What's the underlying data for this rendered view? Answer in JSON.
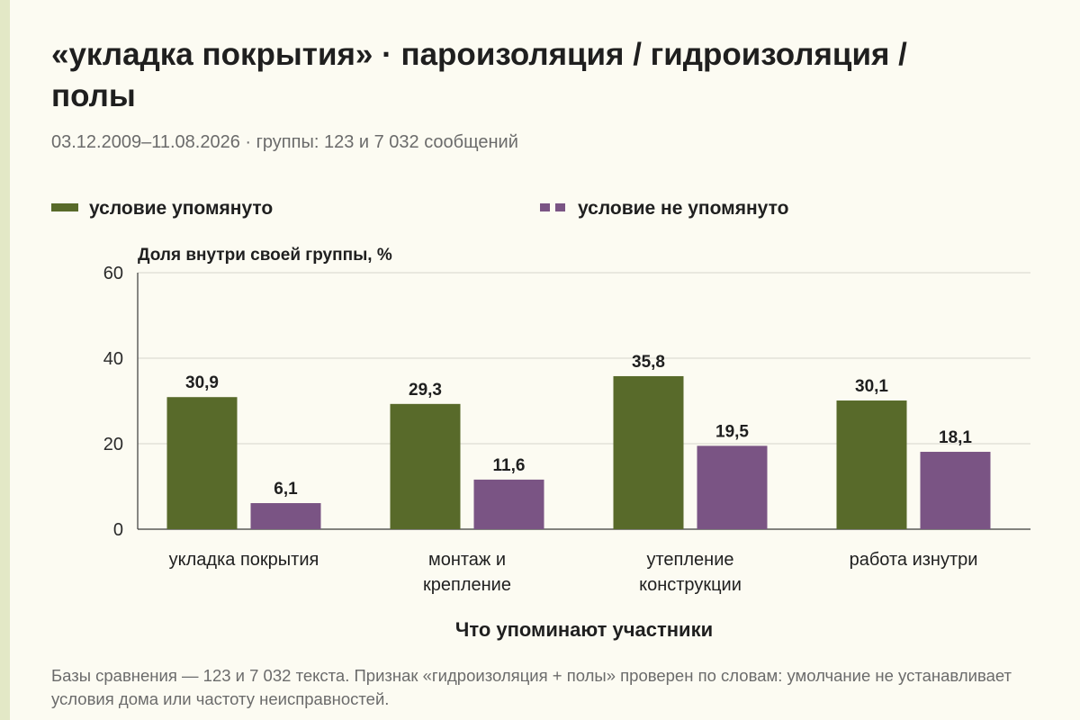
{
  "header": {
    "title": "«укладка покрытия» · пароизоляция / гидроизоляция / полы",
    "subtitle": "03.12.2009–11.08.2026 · группы: 123 и 7 032 сообщений"
  },
  "footnote": "Базы сравнения — 123 и 7 032 текста. Признак «гидроизоляция + полы» проверен по словам: умолчание не устанавливает условия дома или частоту неисправностей.",
  "chart_data": {
    "type": "bar",
    "title": "«укладка покрытия» · пароизоляция / гидроизоляция / полы",
    "ylabel": "Доля внутри своей группы, %",
    "xlabel": "Что упоминают участники",
    "ylim": [
      0,
      60
    ],
    "yticks": [
      0,
      20,
      40,
      60
    ],
    "grid": true,
    "legend_position": "top",
    "categories": [
      [
        "укладка покрытия"
      ],
      [
        "монтаж и",
        "крепление"
      ],
      [
        "утепление",
        "конструкции"
      ],
      [
        "работа изнутри"
      ]
    ],
    "series": [
      {
        "name": "условие упомянуто",
        "color": "#586a2a",
        "values": [
          30.9,
          29.3,
          35.8,
          30.1
        ],
        "labels": [
          "30,9",
          "29,3",
          "35,8",
          "30,1"
        ]
      },
      {
        "name": "условие не упомянуто",
        "color": "#7a5484",
        "values": [
          6.1,
          11.6,
          19.5,
          18.1
        ],
        "labels": [
          "6,1",
          "11,6",
          "19,5",
          "18,1"
        ]
      }
    ]
  }
}
